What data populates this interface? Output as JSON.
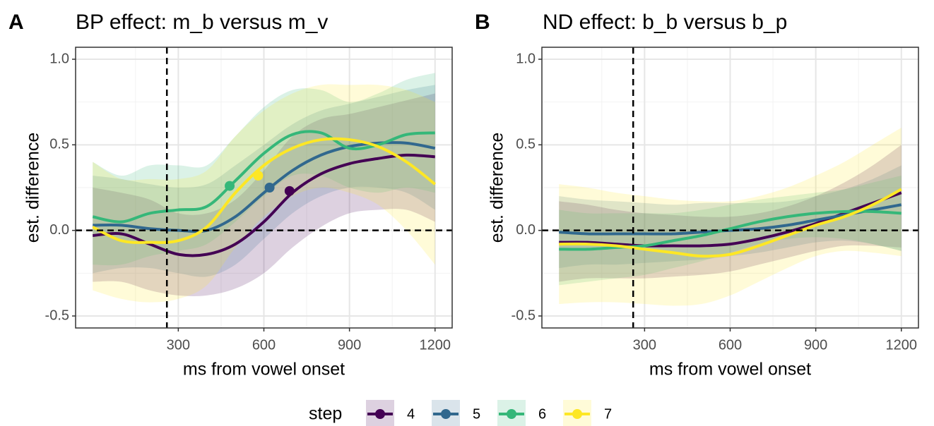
{
  "chart_data": [
    {
      "type": "line",
      "panel_label": "A",
      "title": "BP effect: m_b versus m_v",
      "xlabel": "ms from vowel onset",
      "ylabel": "est. difference",
      "x": [
        0,
        100,
        200,
        300,
        400,
        500,
        600,
        700,
        800,
        900,
        1000,
        1100,
        1200
      ],
      "xlim": [
        -60,
        1260
      ],
      "ylim": [
        -0.57,
        1.07
      ],
      "xticks": [
        300,
        600,
        900,
        1200
      ],
      "yticks": [
        -0.5,
        {
          "value": 0,
          "label": "0.0"
        },
        0.5,
        {
          "value": 1,
          "label": "1.0"
        }
      ],
      "x_minor_grid": [
        150,
        450,
        750,
        1050
      ],
      "y_minor_grid": [
        -0.25,
        0.25,
        0.75
      ],
      "grid": true,
      "vline": 260,
      "hline": 0,
      "band_opacity": 0.18,
      "series": [
        {
          "name": "4",
          "color": "#440154",
          "values": [
            -0.03,
            -0.02,
            -0.08,
            -0.14,
            -0.14,
            -0.08,
            0.05,
            0.22,
            0.33,
            0.39,
            0.42,
            0.44,
            0.43
          ],
          "lower": [
            -0.3,
            -0.3,
            -0.35,
            -0.38,
            -0.38,
            -0.34,
            -0.25,
            -0.1,
            0.02,
            0.1,
            0.12,
            0.12,
            0.05
          ],
          "upper": [
            0.25,
            0.22,
            0.18,
            0.1,
            0.1,
            0.18,
            0.35,
            0.55,
            0.65,
            0.68,
            0.72,
            0.76,
            0.8
          ],
          "marker_x": 690,
          "marker_y": 0.23
        },
        {
          "name": "5",
          "color": "#31688e",
          "values": [
            0.03,
            0.03,
            0.01,
            0.0,
            0.0,
            0.08,
            0.22,
            0.35,
            0.44,
            0.49,
            0.51,
            0.51,
            0.48
          ],
          "lower": [
            -0.25,
            -0.22,
            -0.22,
            -0.25,
            -0.27,
            -0.2,
            -0.05,
            0.1,
            0.2,
            0.25,
            0.25,
            0.22,
            0.12
          ],
          "upper": [
            0.32,
            0.3,
            0.27,
            0.25,
            0.27,
            0.38,
            0.5,
            0.62,
            0.7,
            0.74,
            0.78,
            0.82,
            0.85
          ],
          "marker_x": 620,
          "marker_y": 0.25
        },
        {
          "name": "6",
          "color": "#35b779",
          "values": [
            0.08,
            0.05,
            0.1,
            0.12,
            0.14,
            0.29,
            0.45,
            0.56,
            0.57,
            0.48,
            0.5,
            0.56,
            0.57
          ],
          "lower": [
            -0.2,
            -0.2,
            -0.15,
            -0.12,
            -0.08,
            0.05,
            0.2,
            0.32,
            0.32,
            0.25,
            0.22,
            0.25,
            0.22
          ],
          "upper": [
            0.4,
            0.32,
            0.38,
            0.38,
            0.38,
            0.55,
            0.72,
            0.82,
            0.82,
            0.75,
            0.8,
            0.88,
            0.92
          ],
          "marker_x": 480,
          "marker_y": 0.26
        },
        {
          "name": "7",
          "color": "#fde725",
          "values": [
            0.02,
            -0.06,
            -0.07,
            -0.06,
            0.02,
            0.22,
            0.38,
            0.48,
            0.53,
            0.53,
            0.49,
            0.4,
            0.27
          ],
          "lower": [
            -0.35,
            -0.4,
            -0.42,
            -0.4,
            -0.32,
            -0.1,
            0.08,
            0.2,
            0.25,
            0.22,
            0.15,
            0.0,
            -0.2
          ],
          "upper": [
            0.4,
            0.3,
            0.3,
            0.3,
            0.35,
            0.55,
            0.7,
            0.8,
            0.85,
            0.85,
            0.85,
            0.82,
            0.75
          ],
          "marker_x": 580,
          "marker_y": 0.32
        }
      ]
    },
    {
      "type": "line",
      "panel_label": "B",
      "title": "ND effect: b_b versus b_p",
      "xlabel": "ms from vowel onset",
      "ylabel": "est. difference",
      "x": [
        0,
        100,
        200,
        300,
        400,
        500,
        600,
        700,
        800,
        900,
        1000,
        1100,
        1200
      ],
      "xlim": [
        -60,
        1260
      ],
      "ylim": [
        -0.57,
        1.07
      ],
      "xticks": [
        300,
        600,
        900,
        1200
      ],
      "yticks": [
        -0.5,
        {
          "value": 0,
          "label": "0.0"
        },
        0.5,
        {
          "value": 1,
          "label": "1.0"
        }
      ],
      "x_minor_grid": [
        150,
        450,
        750,
        1050
      ],
      "y_minor_grid": [
        -0.25,
        0.25,
        0.75
      ],
      "grid": true,
      "vline": 260,
      "hline": 0,
      "band_opacity": 0.18,
      "series": [
        {
          "name": "4",
          "color": "#440154",
          "values": [
            -0.07,
            -0.07,
            -0.08,
            -0.09,
            -0.09,
            -0.09,
            -0.08,
            -0.05,
            -0.01,
            0.04,
            0.1,
            0.16,
            0.22
          ],
          "lower": [
            -0.3,
            -0.28,
            -0.28,
            -0.28,
            -0.27,
            -0.26,
            -0.24,
            -0.2,
            -0.16,
            -0.12,
            -0.09,
            -0.09,
            -0.1
          ],
          "upper": [
            0.17,
            0.15,
            0.12,
            0.1,
            0.09,
            0.08,
            0.08,
            0.1,
            0.14,
            0.2,
            0.28,
            0.38,
            0.5
          ]
        },
        {
          "name": "5",
          "color": "#31688e",
          "values": [
            -0.01,
            -0.02,
            -0.02,
            -0.02,
            -0.02,
            -0.01,
            0.0,
            0.01,
            0.03,
            0.06,
            0.09,
            0.12,
            0.15
          ],
          "lower": [
            -0.22,
            -0.2,
            -0.2,
            -0.19,
            -0.18,
            -0.17,
            -0.15,
            -0.13,
            -0.1,
            -0.07,
            -0.06,
            -0.08,
            -0.12
          ],
          "upper": [
            0.2,
            0.18,
            0.17,
            0.16,
            0.15,
            0.16,
            0.16,
            0.16,
            0.17,
            0.2,
            0.24,
            0.3,
            0.38
          ]
        },
        {
          "name": "6",
          "color": "#35b779",
          "values": [
            -0.11,
            -0.11,
            -0.1,
            -0.09,
            -0.06,
            -0.03,
            0.01,
            0.05,
            0.08,
            0.1,
            0.11,
            0.11,
            0.1
          ],
          "lower": [
            -0.32,
            -0.3,
            -0.28,
            -0.26,
            -0.22,
            -0.18,
            -0.13,
            -0.08,
            -0.05,
            -0.04,
            -0.05,
            -0.08,
            -0.12
          ],
          "upper": [
            0.12,
            0.1,
            0.1,
            0.1,
            0.1,
            0.12,
            0.15,
            0.18,
            0.2,
            0.22,
            0.24,
            0.28,
            0.32
          ]
        },
        {
          "name": "7",
          "color": "#fde725",
          "values": [
            -0.08,
            -0.08,
            -0.09,
            -0.11,
            -0.13,
            -0.15,
            -0.14,
            -0.09,
            -0.03,
            0.03,
            0.08,
            0.15,
            0.24
          ],
          "lower": [
            -0.43,
            -0.42,
            -0.42,
            -0.43,
            -0.44,
            -0.43,
            -0.38,
            -0.3,
            -0.22,
            -0.15,
            -0.12,
            -0.13,
            -0.15
          ],
          "upper": [
            0.27,
            0.25,
            0.22,
            0.2,
            0.18,
            0.17,
            0.17,
            0.2,
            0.25,
            0.32,
            0.4,
            0.5,
            0.6
          ]
        }
      ]
    }
  ],
  "legend": {
    "title": "step",
    "position": "bottom"
  }
}
